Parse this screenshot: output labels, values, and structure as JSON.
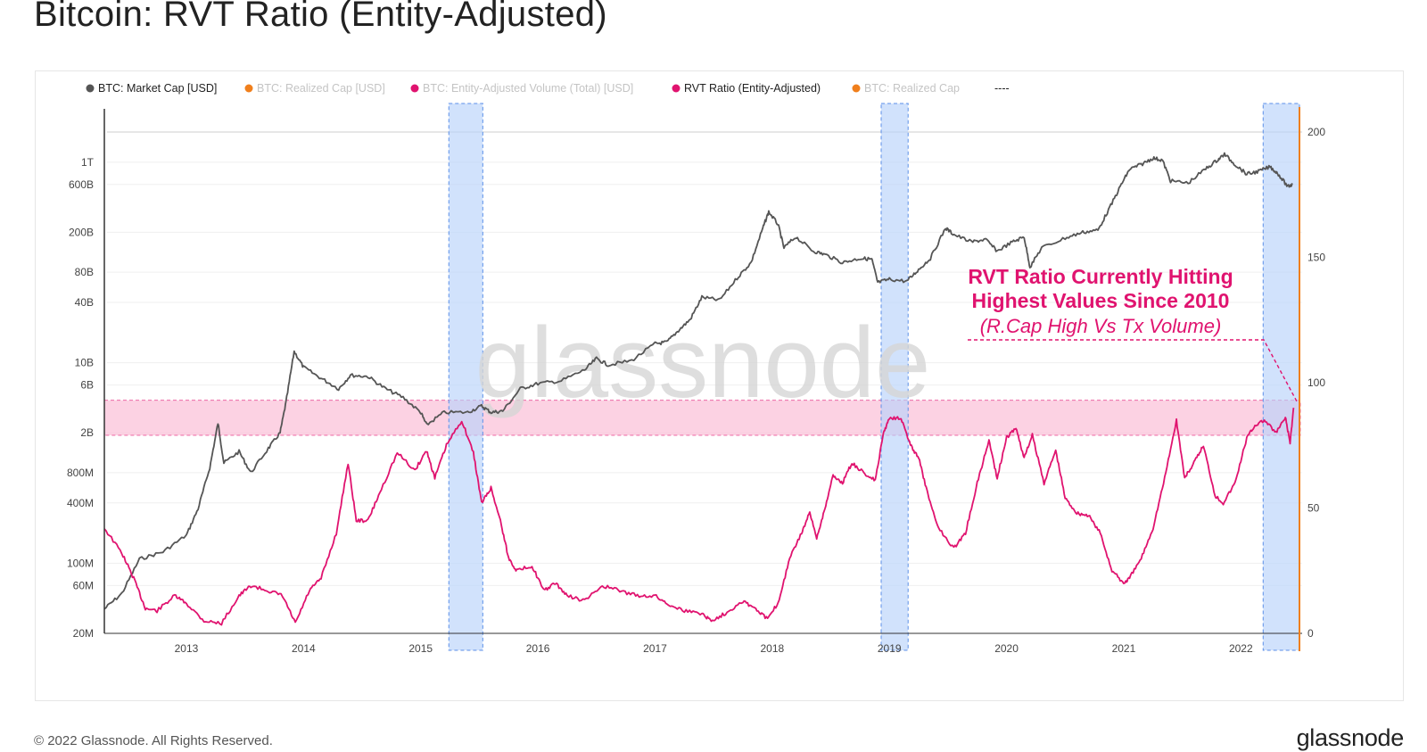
{
  "title": "Bitcoin: RVT Ratio (Entity-Adjusted)",
  "footer": {
    "copyright": "© 2022 Glassnode. All Rights Reserved.",
    "logo": "glassnode"
  },
  "watermark": "glassnode",
  "colors": {
    "market_cap": "#555555",
    "rvt": "#e0136f",
    "realized_cap": "#f07f1c",
    "volume": "#e0136f",
    "band_blue": "#b8d2fb",
    "band_pink": "#fbc3d9",
    "annotation": "#e0136f"
  },
  "annotation": {
    "line1": "RVT Ratio Currently Hitting",
    "line2": "Highest Values Since 2010",
    "line3": "(R.Cap High Vs Tx Volume)"
  },
  "chart_data": {
    "type": "line",
    "legend": [
      {
        "label": "BTC: Market Cap [USD]",
        "color": "#555555",
        "active": true
      },
      {
        "label": "BTC: Realized Cap [USD]",
        "color": "#f07f1c",
        "active": false
      },
      {
        "label": "BTC: Entity-Adjusted Volume (Total) [USD]",
        "color": "#e0136f",
        "active": false
      },
      {
        "label": "RVT Ratio (Entity-Adjusted)",
        "color": "#e0136f",
        "active": true
      },
      {
        "label": "BTC: Realized Cap",
        "color": "#f07f1c",
        "active": false
      },
      {
        "label": "----",
        "color": "",
        "active": true
      }
    ],
    "x_ticks": [
      "2013",
      "2014",
      "2015",
      "2016",
      "2017",
      "2018",
      "2019",
      "2020",
      "2021",
      "2022"
    ],
    "y_left_ticks": [
      "1T",
      "600B",
      "200B",
      "80B",
      "40B",
      "10B",
      "6B",
      "2B",
      "800M",
      "400M",
      "100M",
      "60M",
      "20M"
    ],
    "y_right_ticks": [
      "200",
      "150",
      "100",
      "50",
      "0"
    ],
    "y_left_scale": "log",
    "y_left_range": [
      20000000,
      2000000000000
    ],
    "y_right_range": [
      0,
      200
    ],
    "highlight_bands_x": [
      [
        2015.24,
        2015.53
      ],
      [
        2018.93,
        2019.16
      ],
      [
        2022.19,
        2022.5
      ]
    ],
    "highlight_band_y_right": [
      79,
      93
    ],
    "series": [
      {
        "name": "BTC: Market Cap [USD]",
        "axis": "left",
        "points": [
          [
            2012.3,
            35000000.0
          ],
          [
            2012.45,
            50000000.0
          ],
          [
            2012.6,
            110000000.0
          ],
          [
            2012.8,
            130000000.0
          ],
          [
            2013.0,
            190000000.0
          ],
          [
            2013.1,
            350000000.0
          ],
          [
            2013.2,
            900000000.0
          ],
          [
            2013.27,
            2500000000.0
          ],
          [
            2013.32,
            1000000000.0
          ],
          [
            2013.45,
            1300000000.0
          ],
          [
            2013.55,
            800000000.0
          ],
          [
            2013.7,
            1400000000.0
          ],
          [
            2013.8,
            2000000000.0
          ],
          [
            2013.85,
            4000000000.0
          ],
          [
            2013.92,
            13000000000.0
          ],
          [
            2014.0,
            9000000000.0
          ],
          [
            2014.15,
            7000000000.0
          ],
          [
            2014.3,
            5500000000.0
          ],
          [
            2014.4,
            7500000000.0
          ],
          [
            2014.55,
            7300000000.0
          ],
          [
            2014.7,
            5500000000.0
          ],
          [
            2014.85,
            4500000000.0
          ],
          [
            2015.0,
            3200000000.0
          ],
          [
            2015.05,
            2400000000.0
          ],
          [
            2015.2,
            3200000000.0
          ],
          [
            2015.4,
            3200000000.0
          ],
          [
            2015.52,
            3700000000.0
          ],
          [
            2015.6,
            3200000000.0
          ],
          [
            2015.7,
            3300000000.0
          ],
          [
            2015.85,
            5500000000.0
          ],
          [
            2016.0,
            6200000000.0
          ],
          [
            2016.2,
            6600000000.0
          ],
          [
            2016.4,
            8500000000.0
          ],
          [
            2016.5,
            11000000000.0
          ],
          [
            2016.6,
            9500000000.0
          ],
          [
            2016.8,
            10500000000.0
          ],
          [
            2017.0,
            15500000000.0
          ],
          [
            2017.1,
            16000000000.0
          ],
          [
            2017.2,
            21000000000.0
          ],
          [
            2017.3,
            27000000000.0
          ],
          [
            2017.4,
            45000000000.0
          ],
          [
            2017.55,
            42000000000.0
          ],
          [
            2017.7,
            70000000000.0
          ],
          [
            2017.82,
            100000000000.0
          ],
          [
            2017.92,
            220000000000.0
          ],
          [
            2017.97,
            320000000000.0
          ],
          [
            2018.05,
            240000000000.0
          ],
          [
            2018.1,
            140000000000.0
          ],
          [
            2018.2,
            180000000000.0
          ],
          [
            2018.35,
            130000000000.0
          ],
          [
            2018.45,
            120000000000.0
          ],
          [
            2018.6,
            100000000000.0
          ],
          [
            2018.75,
            110000000000.0
          ],
          [
            2018.85,
            108000000000.0
          ],
          [
            2018.9,
            63000000000.0
          ],
          [
            2019.0,
            68000000000.0
          ],
          [
            2019.15,
            65000000000.0
          ],
          [
            2019.25,
            85000000000.0
          ],
          [
            2019.35,
            110000000000.0
          ],
          [
            2019.48,
            220000000000.0
          ],
          [
            2019.55,
            190000000000.0
          ],
          [
            2019.7,
            160000000000.0
          ],
          [
            2019.82,
            170000000000.0
          ],
          [
            2019.92,
            130000000000.0
          ],
          [
            2020.05,
            160000000000.0
          ],
          [
            2020.15,
            180000000000.0
          ],
          [
            2020.2,
            90000000000.0
          ],
          [
            2020.3,
            140000000000.0
          ],
          [
            2020.5,
            175000000000.0
          ],
          [
            2020.65,
            200000000000.0
          ],
          [
            2020.78,
            210000000000.0
          ],
          [
            2020.88,
            350000000000.0
          ],
          [
            2020.98,
            600000000000.0
          ],
          [
            2021.05,
            850000000000.0
          ],
          [
            2021.15,
            950000000000.0
          ],
          [
            2021.25,
            1100000000000.0
          ],
          [
            2021.33,
            1050000000000.0
          ],
          [
            2021.4,
            650000000000.0
          ],
          [
            2021.55,
            620000000000.0
          ],
          [
            2021.7,
            860000000000.0
          ],
          [
            2021.8,
            1050000000000.0
          ],
          [
            2021.86,
            1200000000000.0
          ],
          [
            2021.95,
            950000000000.0
          ],
          [
            2022.05,
            760000000000.0
          ],
          [
            2022.15,
            810000000000.0
          ],
          [
            2022.25,
            900000000000.0
          ],
          [
            2022.32,
            760000000000.0
          ],
          [
            2022.4,
            570000000000.0
          ],
          [
            2022.44,
            600000000000.0
          ]
        ]
      },
      {
        "name": "RVT Ratio (Entity-Adjusted)",
        "axis": "right",
        "points": [
          [
            2012.3,
            42
          ],
          [
            2012.45,
            32
          ],
          [
            2012.55,
            22
          ],
          [
            2012.65,
            10
          ],
          [
            2012.75,
            9
          ],
          [
            2012.9,
            15
          ],
          [
            2013.0,
            12
          ],
          [
            2013.15,
            5
          ],
          [
            2013.3,
            4
          ],
          [
            2013.45,
            15
          ],
          [
            2013.55,
            19
          ],
          [
            2013.7,
            17
          ],
          [
            2013.82,
            15
          ],
          [
            2013.93,
            4
          ],
          [
            2014.05,
            17
          ],
          [
            2014.15,
            22
          ],
          [
            2014.28,
            40
          ],
          [
            2014.38,
            68
          ],
          [
            2014.45,
            45
          ],
          [
            2014.55,
            45
          ],
          [
            2014.65,
            56
          ],
          [
            2014.8,
            72
          ],
          [
            2014.95,
            65
          ],
          [
            2015.05,
            73
          ],
          [
            2015.12,
            62
          ],
          [
            2015.22,
            75
          ],
          [
            2015.35,
            85
          ],
          [
            2015.45,
            72
          ],
          [
            2015.52,
            52
          ],
          [
            2015.6,
            58
          ],
          [
            2015.68,
            45
          ],
          [
            2015.75,
            30
          ],
          [
            2015.82,
            25
          ],
          [
            2015.95,
            27
          ],
          [
            2016.05,
            17
          ],
          [
            2016.15,
            20
          ],
          [
            2016.25,
            15
          ],
          [
            2016.4,
            13
          ],
          [
            2016.55,
            19
          ],
          [
            2016.7,
            17
          ],
          [
            2016.85,
            15
          ],
          [
            2017.0,
            15
          ],
          [
            2017.1,
            12
          ],
          [
            2017.25,
            9
          ],
          [
            2017.4,
            8
          ],
          [
            2017.48,
            5
          ],
          [
            2017.6,
            8
          ],
          [
            2017.75,
            13
          ],
          [
            2017.85,
            10
          ],
          [
            2017.95,
            6
          ],
          [
            2018.05,
            12
          ],
          [
            2018.15,
            30
          ],
          [
            2018.25,
            40
          ],
          [
            2018.32,
            48
          ],
          [
            2018.38,
            38
          ],
          [
            2018.45,
            50
          ],
          [
            2018.52,
            63
          ],
          [
            2018.6,
            60
          ],
          [
            2018.68,
            68
          ],
          [
            2018.78,
            64
          ],
          [
            2018.88,
            61
          ],
          [
            2018.95,
            80
          ],
          [
            2019.0,
            86
          ],
          [
            2019.1,
            86
          ],
          [
            2019.18,
            75
          ],
          [
            2019.25,
            70
          ],
          [
            2019.33,
            55
          ],
          [
            2019.42,
            42
          ],
          [
            2019.55,
            34
          ],
          [
            2019.65,
            40
          ],
          [
            2019.75,
            60
          ],
          [
            2019.85,
            77
          ],
          [
            2019.92,
            62
          ],
          [
            2020.0,
            78
          ],
          [
            2020.08,
            82
          ],
          [
            2020.15,
            70
          ],
          [
            2020.22,
            79
          ],
          [
            2020.32,
            60
          ],
          [
            2020.42,
            73
          ],
          [
            2020.5,
            54
          ],
          [
            2020.6,
            48
          ],
          [
            2020.7,
            47
          ],
          [
            2020.8,
            40
          ],
          [
            2020.9,
            25
          ],
          [
            2021.0,
            20
          ],
          [
            2021.05,
            22
          ],
          [
            2021.15,
            30
          ],
          [
            2021.25,
            42
          ],
          [
            2021.35,
            62
          ],
          [
            2021.45,
            85
          ],
          [
            2021.52,
            62
          ],
          [
            2021.6,
            68
          ],
          [
            2021.68,
            75
          ],
          [
            2021.78,
            55
          ],
          [
            2021.85,
            52
          ],
          [
            2021.95,
            60
          ],
          [
            2022.05,
            78
          ],
          [
            2022.12,
            83
          ],
          [
            2022.2,
            85
          ],
          [
            2022.3,
            80
          ],
          [
            2022.38,
            86
          ],
          [
            2022.42,
            76
          ],
          [
            2022.45,
            90
          ]
        ]
      }
    ]
  }
}
